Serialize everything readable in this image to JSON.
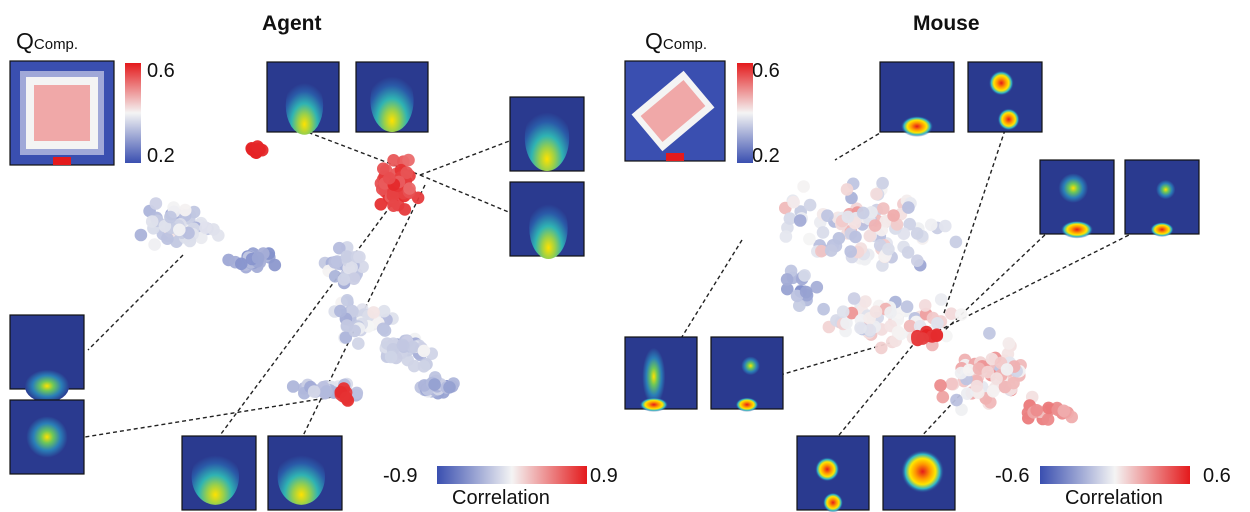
{
  "panels": [
    {
      "title": "Agent",
      "q_label_main": "Q",
      "q_label_sub": "Comp.",
      "q_scale_max": "0.6",
      "q_scale_min": "0.2",
      "corr_min": "-0.9",
      "corr_max": "0.9",
      "corr_label": "Correlation"
    },
    {
      "title": "Mouse",
      "q_label_main": "Q",
      "q_label_sub": "Comp.",
      "q_scale_max": "0.6",
      "q_scale_min": "0.2",
      "corr_min": "-0.6",
      "corr_max": "0.6",
      "corr_label": "Correlation"
    }
  ],
  "colors": {
    "map_background": "#2a3a8f",
    "corr_negative": "#3a4fb0",
    "corr_neutral": "#f4f4f4",
    "corr_positive": "#e41a1c",
    "leader_line": "#222222"
  }
}
